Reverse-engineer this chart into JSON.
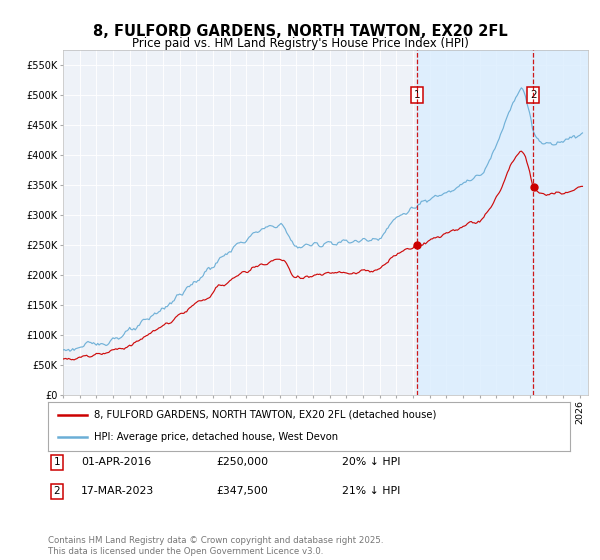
{
  "title": "8, FULFORD GARDENS, NORTH TAWTON, EX20 2FL",
  "subtitle": "Price paid vs. HM Land Registry's House Price Index (HPI)",
  "ylim": [
    0,
    575000
  ],
  "yticks": [
    0,
    50000,
    100000,
    150000,
    200000,
    250000,
    300000,
    350000,
    400000,
    450000,
    500000,
    550000
  ],
  "ytick_labels": [
    "£0",
    "£50K",
    "£100K",
    "£150K",
    "£200K",
    "£250K",
    "£300K",
    "£350K",
    "£400K",
    "£450K",
    "£500K",
    "£550K"
  ],
  "xlim_start": 1995.0,
  "xlim_end": 2026.5,
  "sale1_date": 2016.25,
  "sale1_price": 250000,
  "sale2_date": 2023.21,
  "sale2_price": 347500,
  "hpi_line_color": "#6baed6",
  "price_line_color": "#cc0000",
  "vline_color": "#cc0000",
  "fill_color": "#dceeff",
  "background_color": "#ffffff",
  "plot_bg_color": "#eef2f8",
  "legend_label_price": "8, FULFORD GARDENS, NORTH TAWTON, EX20 2FL (detached house)",
  "legend_label_hpi": "HPI: Average price, detached house, West Devon",
  "footer_text": "Contains HM Land Registry data © Crown copyright and database right 2025.\nThis data is licensed under the Open Government Licence v3.0.",
  "title_fontsize": 10.5,
  "subtitle_fontsize": 8.5
}
